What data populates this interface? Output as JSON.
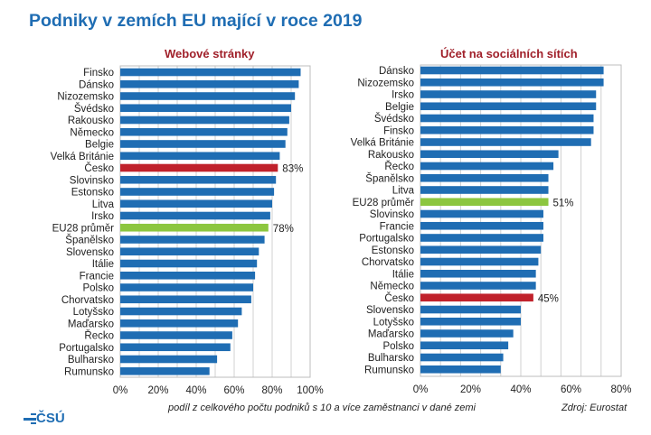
{
  "title": "Podniky v zemích EU mající v roce 2019",
  "note": "podíl z celkového počtu podniků s 10 a více zaměstnanci v dané zemi",
  "source": "Zdroj: Eurostat",
  "logo": "ČSÚ",
  "colors": {
    "default": "#1f6db3",
    "czechia": "#c0212b",
    "eu_average": "#8cc63f",
    "title": "#1f6db3",
    "subtitle": "#a0202a"
  },
  "chart_data": [
    {
      "type": "bar",
      "orientation": "horizontal",
      "title": "Webové stránky",
      "xlim": [
        0,
        100
      ],
      "xticks": [
        "0%",
        "20%",
        "40%",
        "60%",
        "80%",
        "100%"
      ],
      "grid": true,
      "categories": [
        "Finsko",
        "Dánsko",
        "Nizozemsko",
        "Švédsko",
        "Rakousko",
        "Německo",
        "Belgie",
        "Velká Británie",
        "Česko",
        "Slovinsko",
        "Estonsko",
        "Litva",
        "Irsko",
        "EU28 průměr",
        "Španělsko",
        "Slovensko",
        "Itálie",
        "Francie",
        "Polsko",
        "Chorvatsko",
        "Lotyšsko",
        "Maďarsko",
        "Řecko",
        "Portugalsko",
        "Bulharsko",
        "Rumunsko"
      ],
      "values": [
        95,
        94,
        92,
        90,
        89,
        88,
        87,
        84,
        83,
        82,
        81,
        80,
        79,
        78,
        76,
        73,
        72,
        71,
        70,
        69,
        64,
        62,
        59,
        58,
        51,
        47
      ],
      "data_labels": {
        "Česko": "83%",
        "EU28 průměr": "78%"
      }
    },
    {
      "type": "bar",
      "orientation": "horizontal",
      "title": "Účet na sociálních sítích",
      "xlim": [
        0,
        80
      ],
      "xticks": [
        "0%",
        "20%",
        "40%",
        "60%",
        "80%"
      ],
      "grid": true,
      "categories": [
        "Dánsko",
        "Nizozemsko",
        "Irsko",
        "Belgie",
        "Švédsko",
        "Finsko",
        "Velká Británie",
        "Rakousko",
        "Řecko",
        "Španělsko",
        "Litva",
        "EU28 průměr",
        "Slovinsko",
        "Francie",
        "Portugalsko",
        "Estonsko",
        "Chorvatsko",
        "Itálie",
        "Německo",
        "Česko",
        "Slovensko",
        "Lotyšsko",
        "Maďarsko",
        "Polsko",
        "Bulharsko",
        "Rumunsko"
      ],
      "values": [
        73,
        73,
        70,
        70,
        69,
        69,
        68,
        55,
        53,
        51,
        51,
        51,
        49,
        49,
        49,
        48,
        47,
        46,
        46,
        45,
        40,
        40,
        37,
        35,
        33,
        32
      ],
      "data_labels": {
        "EU28 průměr": "51%",
        "Česko": "45%"
      }
    }
  ]
}
